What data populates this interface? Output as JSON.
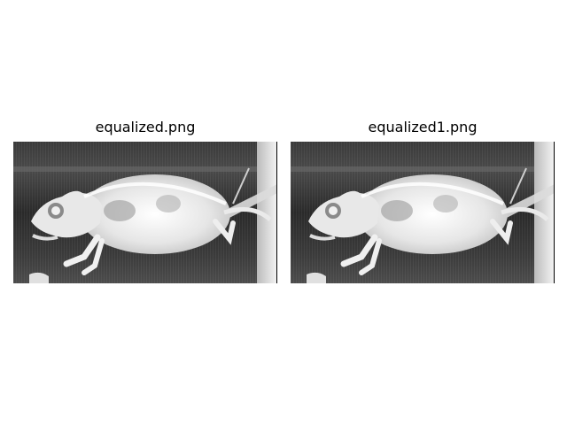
{
  "figure": {
    "panels": [
      {
        "title": "equalized.png"
      },
      {
        "title": "equalized1.png"
      }
    ]
  },
  "colors": {
    "background": "#ffffff",
    "xray_dark": "#2a2a2a",
    "xray_bright": "#f2f2f2"
  }
}
